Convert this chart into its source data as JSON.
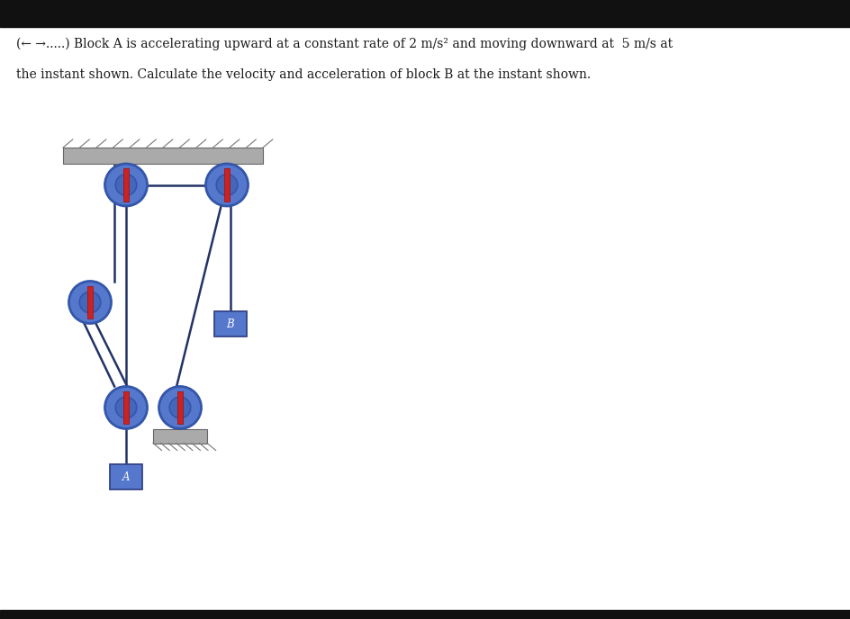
{
  "bg_color": "#ffffff",
  "hatch_support_color": "#aaaaaa",
  "hatch_line_color": "#777777",
  "pulley_outer_color": "#5577cc",
  "pulley_rim_color": "#3355aa",
  "pulley_hub_color": "#4466bb",
  "pulley_axle_color": "#cc2222",
  "rope_color": "#223366",
  "block_color": "#5577cc",
  "block_border_color": "#334488",
  "text_color": "#1a1a1a",
  "black_bar": "#111111",
  "title_line1": "(← →.....) Block A is accelerating upward at a constant rate of 2 m/s² and moving downward at  5 m/s at",
  "title_line2": "the instant shown. Calculate the velocity and acceleration of block B at the instant shown.",
  "label_A": "A",
  "label_B": "B",
  "fig_w": 9.45,
  "fig_h": 6.88,
  "dpi": 100
}
